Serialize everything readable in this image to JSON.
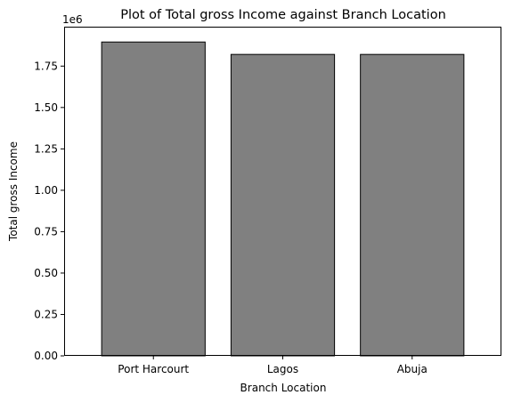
{
  "chart_data": {
    "type": "bar",
    "title": "Plot of Total gross Income against Branch Location",
    "xlabel": "Branch Location",
    "ylabel": "Total gross Income",
    "categories": [
      "Port Harcourt",
      "Lagos",
      "Abuja"
    ],
    "values": [
      1895463.54,
      1820577.78,
      1820531.52
    ],
    "ylim": [
      0,
      1988000
    ],
    "yticks": [
      0,
      250000,
      500000,
      750000,
      1000000,
      1250000,
      1500000,
      1750000
    ],
    "ytick_labels": [
      "0.00",
      "0.25",
      "0.50",
      "0.75",
      "1.00",
      "1.25",
      "1.50",
      "1.75"
    ],
    "y_offset_label": "1e6",
    "bar_color": "#808080",
    "bar_edge_color": "#000000",
    "grid": false,
    "legend": "none"
  }
}
